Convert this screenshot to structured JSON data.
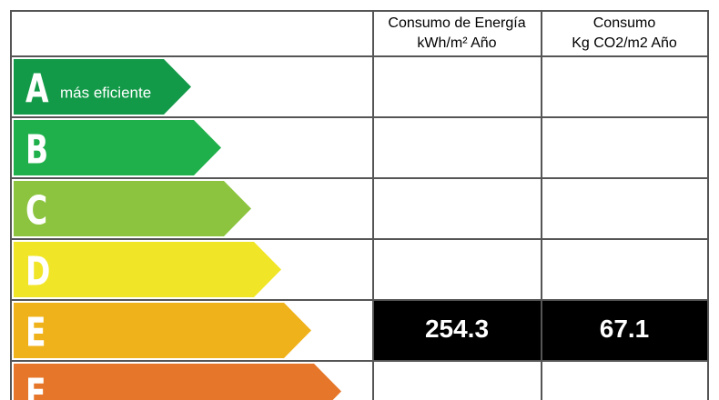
{
  "header": {
    "energy": [
      "Consumo de Energía",
      "kWh/m² Año"
    ],
    "co2": [
      "Consumo",
      "Kg CO2/m2 Año"
    ]
  },
  "rows": [
    {
      "letter": "A",
      "note": "más eficiente",
      "color": "#129a48",
      "energy": null,
      "co2": null
    },
    {
      "letter": "B",
      "color": "#1fb04b",
      "energy": null,
      "co2": null
    },
    {
      "letter": "C",
      "color": "#8cc43f",
      "energy": null,
      "co2": null
    },
    {
      "letter": "D",
      "color": "#f0e526",
      "energy": null,
      "co2": null
    },
    {
      "letter": "E",
      "color": "#f0b21b",
      "energy": "254.3",
      "co2": "67.1"
    },
    {
      "letter": "F",
      "color": "#e5762a",
      "energy": null,
      "co2": null
    }
  ]
}
